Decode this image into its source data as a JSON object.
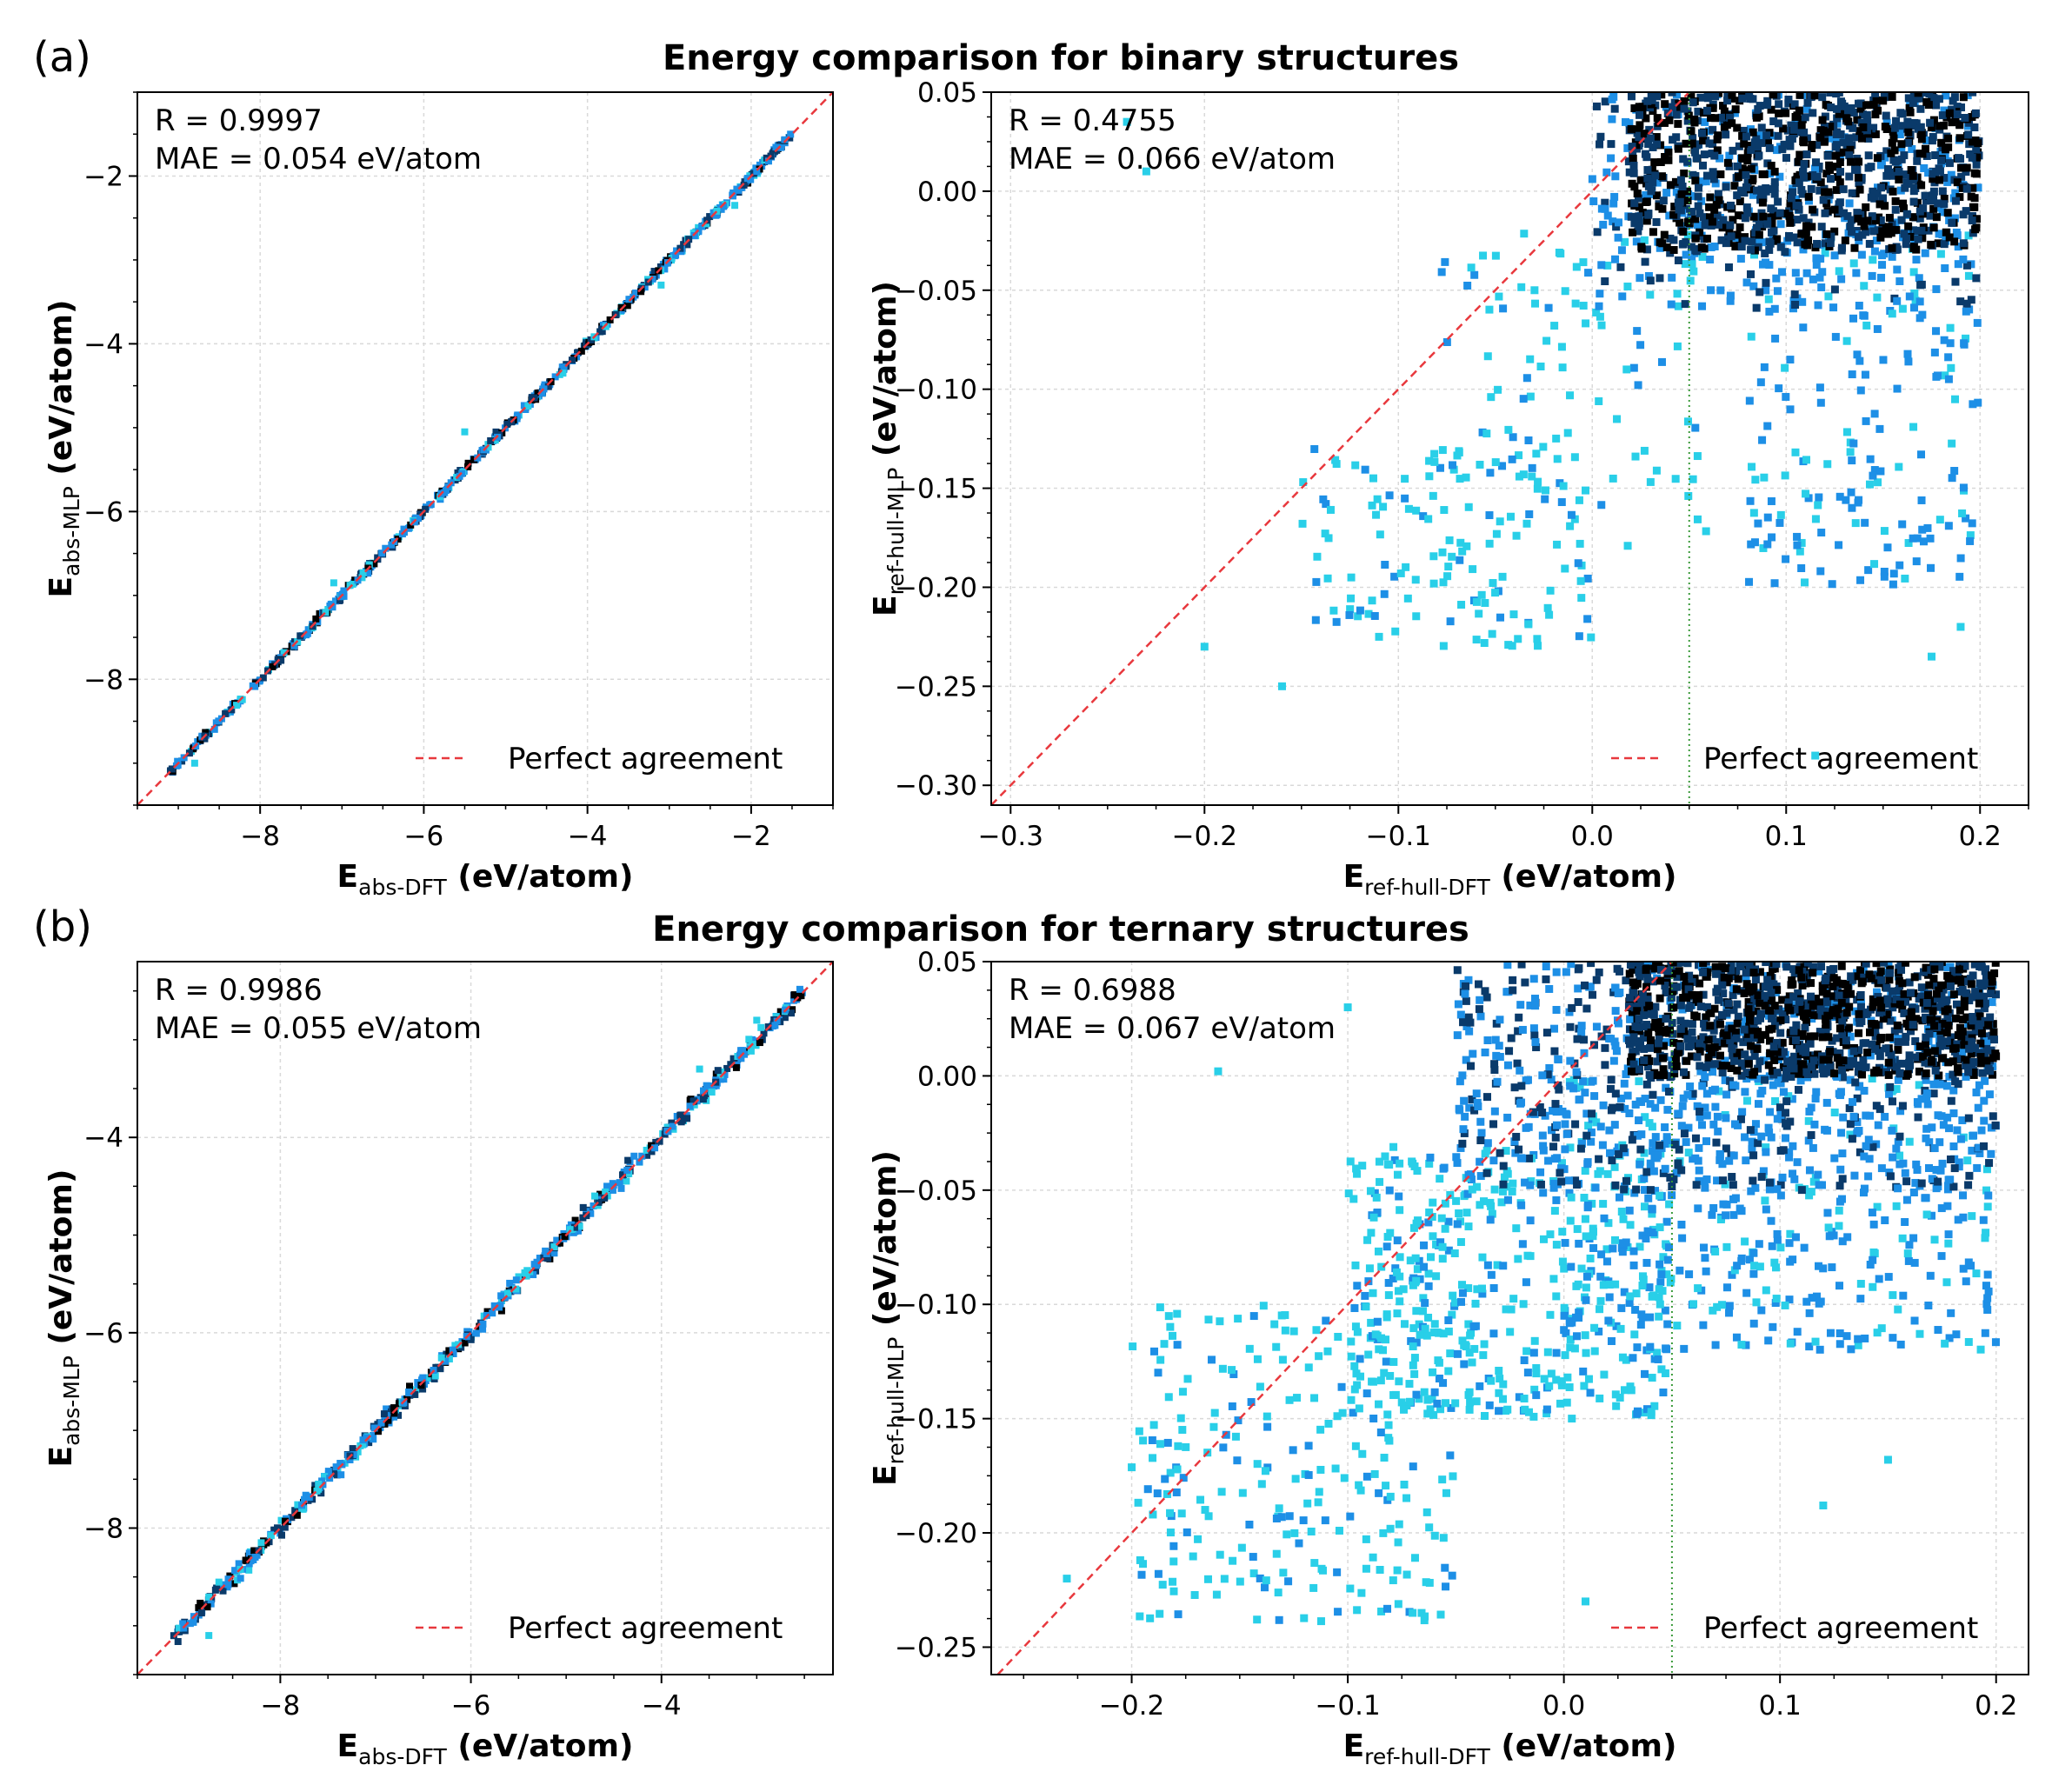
{
  "colors": {
    "perfect_line": "#e8383d",
    "threshold_line": "#3a9a3a",
    "grid": "#d9d9d9",
    "point_sparse": "#29cfe8",
    "point_medium": "#1d8fe6",
    "point_dense": "#0a3a6a",
    "point_core": "#000000"
  },
  "figure": {
    "rows": [
      {
        "panel_label": "(a)",
        "title": "Energy comparison for binary structures"
      },
      {
        "panel_label": "(b)",
        "title": "Energy comparison for ternary structures"
      }
    ]
  },
  "chart_data": [
    {
      "type": "scatter",
      "title": "Energy comparison for binary structures",
      "xlabel": {
        "main": "E",
        "sub": "abs-DFT",
        "unit": " (eV/atom)"
      },
      "ylabel": {
        "main": "E",
        "sub": "abs-MLP",
        "unit": " (eV/atom)"
      },
      "xlim": [
        -9.5,
        -1.0
      ],
      "ylim": [
        -9.5,
        -1.0
      ],
      "xticks": [
        -8,
        -6,
        -4,
        -2
      ],
      "yticks": [
        -8,
        -6,
        -4,
        -2
      ],
      "annotation": [
        "R = 0.9997",
        "MAE = 0.054 eV/atom"
      ],
      "legend": "Perfect agreement",
      "legend_loc": "bottom-right",
      "reference_line": "y = x",
      "clusters": [
        {
          "x": [
            -9.1,
            -1.5
          ],
          "y": [
            -9.1,
            -1.5
          ],
          "spread": 0.02,
          "count": 520
        }
      ],
      "outliers": [
        [
          -7.1,
          -6.85
        ],
        [
          -4.3,
          -4.35
        ],
        [
          -5.5,
          -5.05
        ],
        [
          -3.1,
          -3.3
        ],
        [
          -2.2,
          -2.35
        ],
        [
          -8.8,
          -9.0
        ]
      ]
    },
    {
      "type": "scatter",
      "title": "Energy comparison for binary structures",
      "xlabel": {
        "main": "E",
        "sub": "ref-hull-DFT",
        "unit": " (eV/atom)"
      },
      "ylabel": {
        "main": "E",
        "sub": "ref-hull-MLP",
        "unit": " (eV/atom)"
      },
      "xlim": [
        -0.31,
        0.225
      ],
      "ylim": [
        -0.31,
        0.05
      ],
      "xticks": [
        -0.3,
        -0.2,
        -0.1,
        0.0,
        0.1,
        0.2
      ],
      "yticks": [
        -0.3,
        -0.25,
        -0.2,
        -0.15,
        -0.1,
        -0.05,
        0.0,
        0.05
      ],
      "annotation": [
        "R = 0.4755",
        "MAE = 0.066 eV/atom"
      ],
      "legend": "Perfect agreement",
      "legend_loc": "bottom-right",
      "reference_line": "y = x",
      "threshold_x": 0.05,
      "clusters": [
        {
          "x": [
            -0.15,
            0.0
          ],
          "y": [
            -0.23,
            -0.13
          ],
          "count": 130
        },
        {
          "x": [
            -0.08,
            0.06
          ],
          "y": [
            -0.18,
            -0.02
          ],
          "count": 110
        },
        {
          "x": [
            0.08,
            0.2
          ],
          "y": [
            -0.2,
            -0.02
          ],
          "count": 200
        },
        {
          "x": [
            0.0,
            0.2
          ],
          "y": [
            -0.06,
            0.05
          ],
          "count": 350
        },
        {
          "x": [
            0.02,
            0.2
          ],
          "y": [
            -0.03,
            0.05
          ],
          "count": 900
        }
      ],
      "outliers": [
        [
          -0.24,
          0.035
        ],
        [
          -0.23,
          0.01
        ],
        [
          -0.2,
          -0.23
        ],
        [
          -0.16,
          -0.25
        ],
        [
          0.115,
          -0.285
        ],
        [
          0.19,
          -0.22
        ],
        [
          0.175,
          -0.235
        ]
      ]
    },
    {
      "type": "scatter",
      "title": "Energy comparison for ternary structures",
      "xlabel": {
        "main": "E",
        "sub": "abs-DFT",
        "unit": " (eV/atom)"
      },
      "ylabel": {
        "main": "E",
        "sub": "abs-MLP",
        "unit": " (eV/atom)"
      },
      "xlim": [
        -9.5,
        -2.2
      ],
      "ylim": [
        -9.5,
        -2.2
      ],
      "xticks": [
        -8,
        -6,
        -4
      ],
      "yticks": [
        -8,
        -6,
        -4
      ],
      "annotation": [
        "R = 0.9986",
        "MAE = 0.055 eV/atom"
      ],
      "legend": "Perfect agreement",
      "legend_loc": "bottom-right",
      "reference_line": "y = x",
      "clusters": [
        {
          "x": [
            -9.1,
            -2.5
          ],
          "y": [
            -9.1,
            -2.5
          ],
          "spread": 0.04,
          "count": 520
        }
      ],
      "outliers": [
        [
          -8.75,
          -9.1
        ],
        [
          -8.2,
          -8.15
        ],
        [
          -7.6,
          -7.55
        ],
        [
          -4.7,
          -4.6
        ],
        [
          -3.6,
          -3.3
        ],
        [
          -3.0,
          -2.8
        ]
      ]
    },
    {
      "type": "scatter",
      "title": "Energy comparison for ternary structures",
      "xlabel": {
        "main": "E",
        "sub": "ref-hull-DFT",
        "unit": " (eV/atom)"
      },
      "ylabel": {
        "main": "E",
        "sub": "ref-hull-MLP",
        "unit": " (eV/atom)"
      },
      "xlim": [
        -0.265,
        0.215
      ],
      "ylim": [
        -0.262,
        0.05
      ],
      "xticks": [
        -0.2,
        -0.1,
        0.0,
        0.1,
        0.2
      ],
      "yticks": [
        -0.25,
        -0.2,
        -0.15,
        -0.1,
        -0.05,
        0.0,
        0.05
      ],
      "annotation": [
        "R = 0.6988",
        "MAE = 0.067 eV/atom"
      ],
      "legend": "Perfect agreement",
      "legend_loc": "bottom-right",
      "reference_line": "y = x",
      "threshold_x": 0.05,
      "clusters": [
        {
          "x": [
            -0.2,
            -0.05
          ],
          "y": [
            -0.24,
            -0.1
          ],
          "count": 250
        },
        {
          "x": [
            -0.1,
            0.05
          ],
          "y": [
            -0.15,
            -0.03
          ],
          "count": 450
        },
        {
          "x": [
            0.0,
            0.2
          ],
          "y": [
            -0.12,
            0.0
          ],
          "count": 450
        },
        {
          "x": [
            -0.05,
            0.2
          ],
          "y": [
            -0.05,
            0.05
          ],
          "count": 700
        },
        {
          "x": [
            0.03,
            0.2
          ],
          "y": [
            0.0,
            0.05
          ],
          "count": 1000
        }
      ],
      "outliers": [
        [
          -0.16,
          0.002
        ],
        [
          -0.1,
          0.03
        ],
        [
          -0.23,
          -0.22
        ],
        [
          0.01,
          -0.23
        ],
        [
          0.15,
          -0.168
        ],
        [
          0.12,
          -0.188
        ],
        [
          -0.07,
          -0.235
        ]
      ]
    }
  ]
}
